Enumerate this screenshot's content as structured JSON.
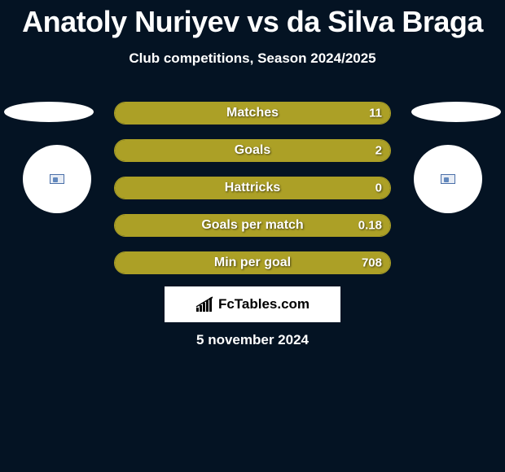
{
  "title": "Anatoly Nuriyev vs da Silva Braga",
  "subtitle": "Club competitions, Season 2024/2025",
  "date": "5 november 2024",
  "logo_text": "FcTables.com",
  "colors": {
    "background": "#041323",
    "bar_fill": "#aca026",
    "bar_border": "#aca026",
    "text": "#ffffff",
    "logo_bg": "#ffffff",
    "logo_text": "#000000"
  },
  "avatars": {
    "left_ellipse": true,
    "right_ellipse": true,
    "left_circle": true,
    "right_circle": true
  },
  "bars": [
    {
      "label": "Matches",
      "value": "11",
      "fill_pct": 100
    },
    {
      "label": "Goals",
      "value": "2",
      "fill_pct": 100
    },
    {
      "label": "Hattricks",
      "value": "0",
      "fill_pct": 100
    },
    {
      "label": "Goals per match",
      "value": "0.18",
      "fill_pct": 100
    },
    {
      "label": "Min per goal",
      "value": "708",
      "fill_pct": 100
    }
  ]
}
